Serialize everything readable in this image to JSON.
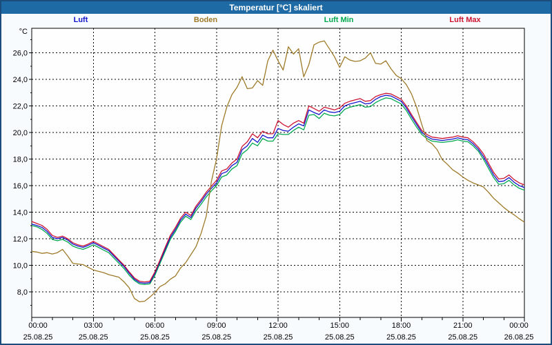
{
  "window": {
    "title": "Temperatur [°C] skaliert"
  },
  "colors": {
    "titlebar_bg": "#1d6aa5",
    "titlebar_text": "#ffffff",
    "window_border": "#1b4c7c",
    "window_bg": "#f8fbfd",
    "plot_bg": "#fefeff",
    "grid": "#000000",
    "axis": "#000000",
    "tick_text": "#000000"
  },
  "chart_data": {
    "type": "line",
    "title": "Temperatur [°C] skaliert",
    "grid": "dashed",
    "legend_position": "top",
    "x_start_hours": 0,
    "x_step_hours": 0.25,
    "x_end_hours": 24,
    "x_axis": {
      "major_tick_every_hours": 3,
      "minor_tick_every_hours": 1,
      "tick_times": [
        "00:00",
        "03:00",
        "06:00",
        "09:00",
        "12:00",
        "15:00",
        "18:00",
        "21:00",
        "00:00"
      ],
      "tick_dates": [
        "25.08.25",
        "25.08.25",
        "25.08.25",
        "25.08.25",
        "25.08.25",
        "25.08.25",
        "25.08.25",
        "25.08.25",
        "26.08.25"
      ]
    },
    "y_axis": {
      "unit": "°C",
      "range": [
        6.1,
        27.8
      ],
      "tick_values": [
        26,
        24,
        22,
        20,
        18,
        16,
        14,
        12,
        10,
        8
      ],
      "tick_labels": [
        "26,0",
        "24,0",
        "22,0",
        "20,0",
        "18,0",
        "16,0",
        "14,0",
        "12,0",
        "10,0",
        "8,0"
      ],
      "minor_tick_step": 1
    },
    "series": [
      {
        "name": "Luft",
        "color": "#1414cc",
        "values": [
          13.1,
          13.0,
          12.85,
          12.55,
          12.1,
          12.0,
          12.1,
          11.9,
          11.6,
          11.45,
          11.35,
          11.5,
          11.7,
          11.5,
          11.3,
          11.1,
          10.7,
          10.3,
          9.9,
          9.4,
          8.95,
          8.7,
          8.65,
          8.7,
          9.4,
          10.3,
          11.2,
          12.1,
          12.7,
          13.4,
          13.85,
          13.6,
          14.3,
          14.8,
          15.35,
          15.8,
          16.2,
          16.9,
          17.05,
          17.5,
          17.75,
          18.7,
          19.0,
          19.55,
          19.25,
          19.8,
          19.6,
          19.6,
          20.3,
          20.15,
          20.1,
          20.4,
          20.65,
          20.5,
          21.7,
          21.5,
          21.35,
          21.7,
          21.55,
          21.5,
          21.6,
          22.0,
          22.15,
          22.25,
          22.35,
          22.15,
          22.2,
          22.5,
          22.7,
          22.8,
          22.75,
          22.55,
          22.35,
          21.85,
          21.2,
          20.6,
          20.0,
          19.7,
          19.5,
          19.45,
          19.4,
          19.45,
          19.5,
          19.6,
          19.5,
          19.45,
          19.15,
          18.75,
          18.2,
          17.5,
          16.8,
          16.3,
          16.35,
          16.6,
          16.25,
          16.0,
          15.85
        ]
      },
      {
        "name": "Boden",
        "color": "#9e7a28",
        "values": [
          11.05,
          11.0,
          10.9,
          10.95,
          10.85,
          10.95,
          11.2,
          10.7,
          10.15,
          10.1,
          10.05,
          9.85,
          9.65,
          9.55,
          9.45,
          9.3,
          9.2,
          9.1,
          8.75,
          8.3,
          7.5,
          7.25,
          7.3,
          7.6,
          7.95,
          8.4,
          8.6,
          8.95,
          9.2,
          9.8,
          10.2,
          10.8,
          11.4,
          12.4,
          13.7,
          16.3,
          18.0,
          20.5,
          21.9,
          22.85,
          23.4,
          24.2,
          23.3,
          23.35,
          23.9,
          23.55,
          25.4,
          26.2,
          25.4,
          24.7,
          26.45,
          25.9,
          26.3,
          24.2,
          25.1,
          26.6,
          26.8,
          26.9,
          26.3,
          25.7,
          24.9,
          25.7,
          25.45,
          25.35,
          25.4,
          25.6,
          26.0,
          25.2,
          25.15,
          25.4,
          24.8,
          24.3,
          24.05,
          23.6,
          22.9,
          21.9,
          20.6,
          19.4,
          19.15,
          18.7,
          17.95,
          17.6,
          17.2,
          16.95,
          16.65,
          16.4,
          16.2,
          16.05,
          15.9,
          15.5,
          15.05,
          14.7,
          14.35,
          14.05,
          13.8,
          13.5,
          13.25
        ]
      },
      {
        "name": "Luft Min",
        "color": "#00a84e",
        "values": [
          13.0,
          12.9,
          12.7,
          12.4,
          11.95,
          11.85,
          11.95,
          11.75,
          11.45,
          11.3,
          11.2,
          11.35,
          11.55,
          11.35,
          11.15,
          10.95,
          10.55,
          10.15,
          9.75,
          9.25,
          8.85,
          8.6,
          8.55,
          8.6,
          9.25,
          10.15,
          11.05,
          11.95,
          12.55,
          13.25,
          13.7,
          13.45,
          14.1,
          14.6,
          15.15,
          15.6,
          16.0,
          16.65,
          16.8,
          17.25,
          17.5,
          18.4,
          18.7,
          19.2,
          19.0,
          19.55,
          19.35,
          19.35,
          19.9,
          19.85,
          19.85,
          20.15,
          20.4,
          20.2,
          21.3,
          21.35,
          21.05,
          21.45,
          21.3,
          21.25,
          21.35,
          21.75,
          21.9,
          22.0,
          22.1,
          21.9,
          21.95,
          22.25,
          22.45,
          22.6,
          22.55,
          22.35,
          22.15,
          21.65,
          21.0,
          20.4,
          19.85,
          19.55,
          19.35,
          19.3,
          19.25,
          19.3,
          19.35,
          19.45,
          19.35,
          19.3,
          19.0,
          18.6,
          18.0,
          17.3,
          16.6,
          16.1,
          16.15,
          16.4,
          16.05,
          15.8,
          15.65
        ]
      },
      {
        "name": "Luft Max",
        "color": "#cc1430",
        "values": [
          13.3,
          13.15,
          13.0,
          12.7,
          12.25,
          12.1,
          12.2,
          12.0,
          11.7,
          11.55,
          11.45,
          11.6,
          11.8,
          11.6,
          11.4,
          11.2,
          10.8,
          10.4,
          10.0,
          9.5,
          9.05,
          8.8,
          8.75,
          8.8,
          9.5,
          10.4,
          11.35,
          12.25,
          12.85,
          13.55,
          14.0,
          13.75,
          14.45,
          14.95,
          15.5,
          15.95,
          16.4,
          17.1,
          17.25,
          17.7,
          18.0,
          18.95,
          19.3,
          19.9,
          19.6,
          20.1,
          19.9,
          19.9,
          20.9,
          20.6,
          20.4,
          20.7,
          20.9,
          20.7,
          22.0,
          21.8,
          21.6,
          21.9,
          21.8,
          21.7,
          21.85,
          22.2,
          22.35,
          22.45,
          22.55,
          22.35,
          22.4,
          22.7,
          22.85,
          22.95,
          22.9,
          22.7,
          22.5,
          22.0,
          21.35,
          20.75,
          20.15,
          19.85,
          19.65,
          19.6,
          19.55,
          19.6,
          19.65,
          19.75,
          19.65,
          19.6,
          19.3,
          18.9,
          18.4,
          17.7,
          17.0,
          16.5,
          16.55,
          16.8,
          16.45,
          16.2,
          16.05
        ]
      }
    ],
    "draw_order": [
      2,
      0,
      3,
      1
    ],
    "legend_x_centers": [
      115,
      296,
      489,
      672
    ]
  }
}
